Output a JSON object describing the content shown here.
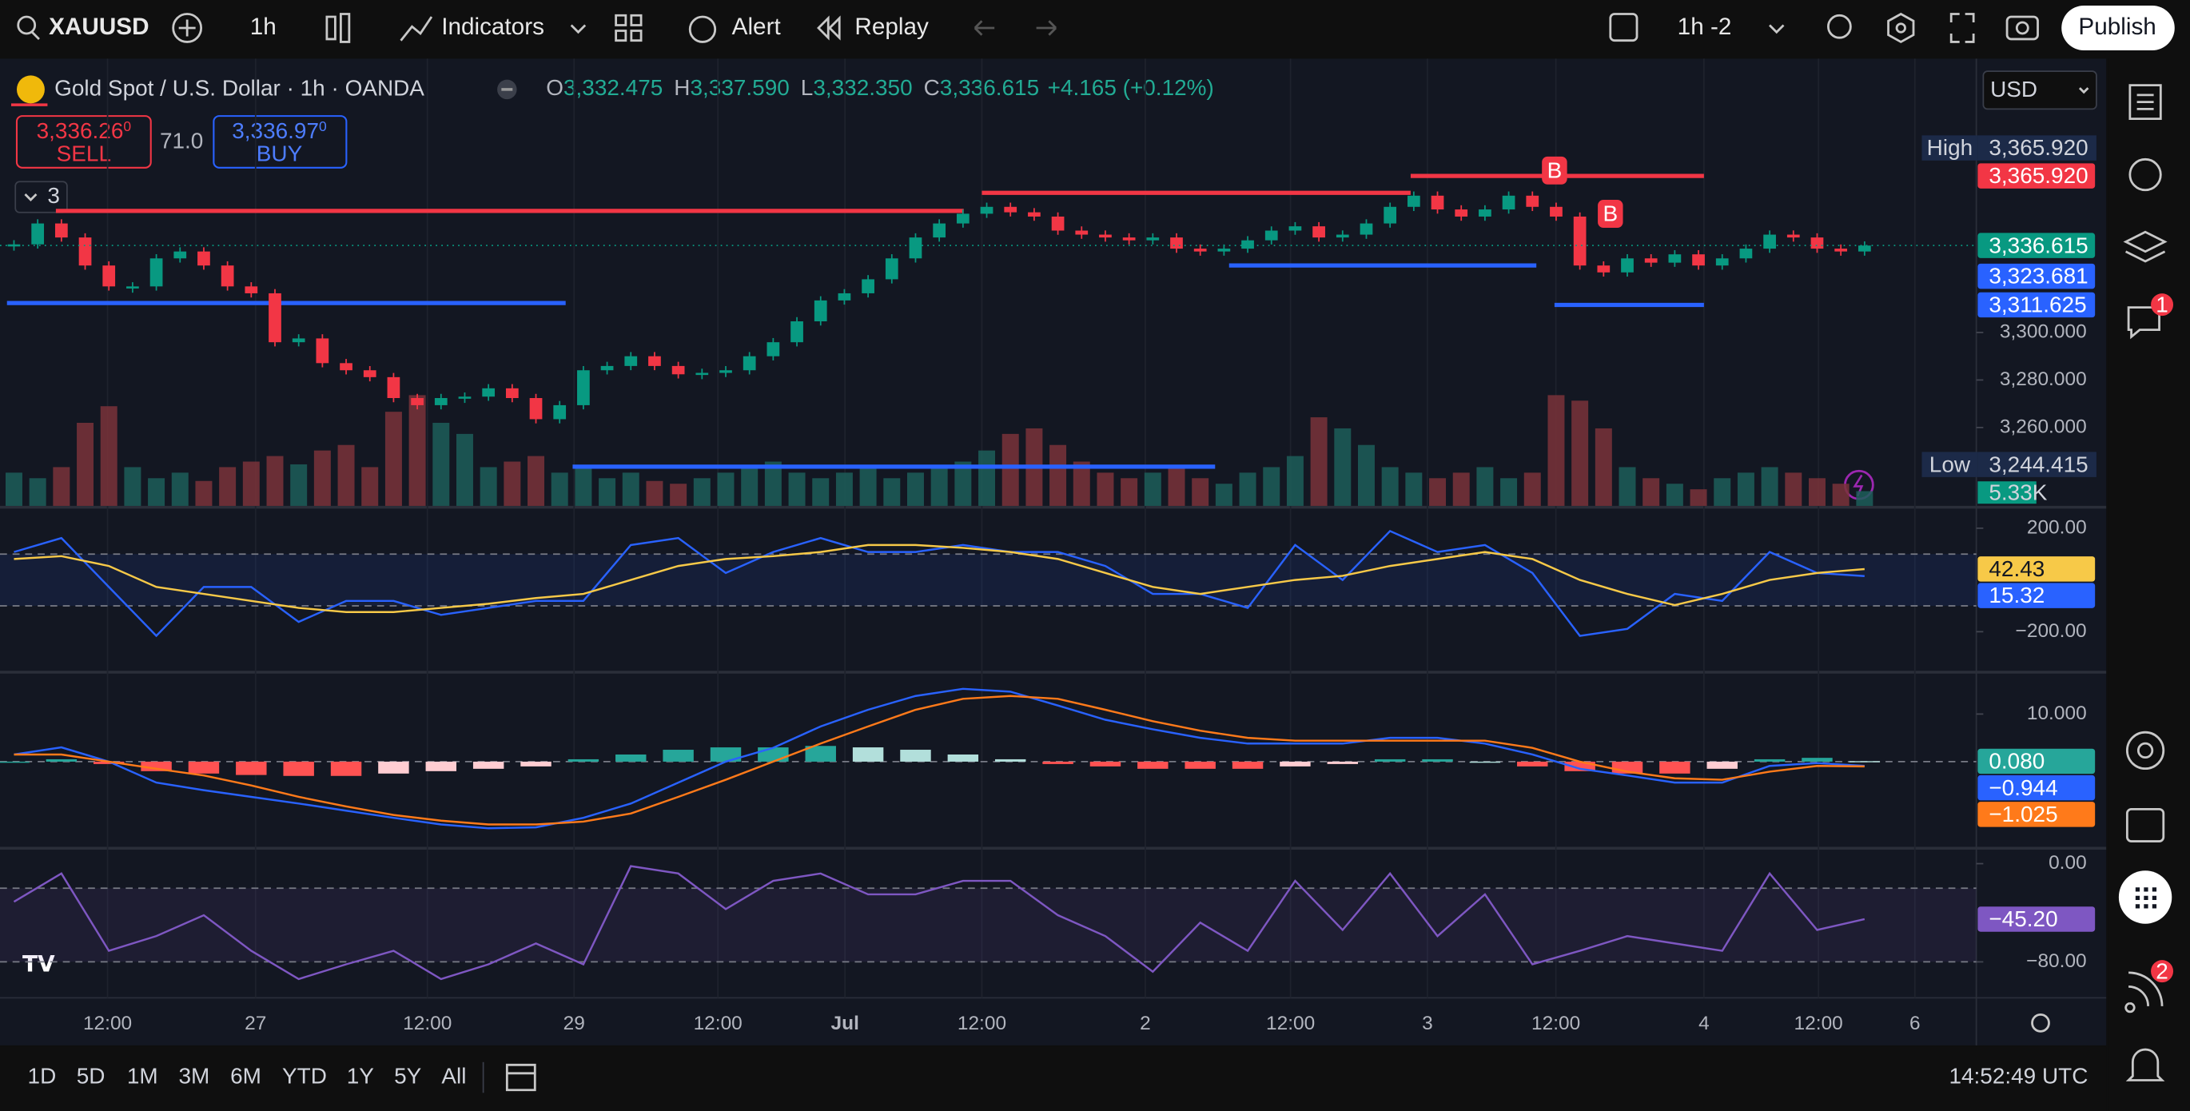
{
  "toolbar": {
    "symbol": "XAUUSD",
    "interval": "1h",
    "indicators": "Indicators",
    "alert": "Alert",
    "replay": "Replay",
    "layout": "1h -2",
    "publish": "Publish"
  },
  "legend": {
    "title": "Gold Spot / U.S. Dollar · 1h · OANDA",
    "open_label": "O",
    "open": "3,332.475",
    "high_label": "H",
    "high": "3,337.590",
    "low_label": "L",
    "low": "3,332.350",
    "close_label": "C",
    "close": "3,336.615",
    "change": "+4.165 (+0.12%)",
    "indicator_count": "3"
  },
  "trade": {
    "sell_price": "3,336.26",
    "sell_fraction": "0",
    "sell_label": "SELL",
    "spread": "71.0",
    "buy_price": "3,336.97",
    "buy_fraction": "0",
    "buy_label": "BUY"
  },
  "currency": "USD",
  "chart_data": [
    {
      "type": "candlestick",
      "closes": [
        3337.1,
        3345.9,
        3340,
        3328.2,
        3319.4,
        3319.4,
        3331.2,
        3334.1,
        3328.2,
        3319.4,
        3316.5,
        3295.9,
        3297.5,
        3287.1,
        3284.1,
        3281.2,
        3272.4,
        3269.4,
        3272.4,
        3273,
        3276.5,
        3272.4,
        3263.5,
        3269.4,
        3284.1,
        3285.9,
        3290,
        3285.9,
        3282.4,
        3283,
        3284.1,
        3290,
        3295.9,
        3304.7,
        3313.5,
        3316.5,
        3322.4,
        3331.2,
        3340,
        3345.9,
        3350,
        3352.9,
        3350.6,
        3348.8,
        3342.9,
        3341.2,
        3340,
        3338.8,
        3340,
        3335.3,
        3334.1,
        3335.3,
        3338.8,
        3342.9,
        3344.7,
        3340,
        3341.2,
        3345.9,
        3352.9,
        3357.6,
        3351.8,
        3348.8,
        3351.8,
        3357.6,
        3352.9,
        3348.8,
        3328.2,
        3325.3,
        3331.2,
        3329.4,
        3332.9,
        3328.2,
        3331.2,
        3335.3,
        3341.2,
        3340,
        3335.3,
        3334.1,
        3336.6
      ],
      "volumes": [
        12,
        10,
        14,
        30,
        36,
        14,
        10,
        12,
        9,
        14,
        16,
        18,
        15,
        20,
        22,
        14,
        34,
        40,
        30,
        26,
        14,
        16,
        18,
        12,
        14,
        10,
        12,
        9,
        8,
        10,
        12,
        14,
        16,
        12,
        10,
        12,
        14,
        10,
        12,
        14,
        16,
        20,
        26,
        28,
        22,
        16,
        12,
        10,
        12,
        14,
        10,
        8,
        12,
        14,
        18,
        32,
        28,
        22,
        14,
        12,
        10,
        12,
        14,
        10,
        12,
        40,
        38,
        28,
        14,
        10,
        8,
        6,
        10,
        12,
        14,
        12,
        10,
        8,
        5.33
      ],
      "up_color": "#089981",
      "down_color": "#f23645",
      "volume_up_color": "#1d5e59",
      "volume_down_color": "#7a3339",
      "ylim": [
        3227,
        3413.5
      ],
      "volume_lim": [
        0,
        160
      ],
      "yticks": [
        {
          "value": 3300,
          "label": "3,300.000"
        },
        {
          "value": 3280,
          "label": "3,280.000"
        },
        {
          "value": 3260,
          "label": "3,260.000"
        }
      ],
      "levels": [
        {
          "value": 3351.2,
          "color": "#f23645"
        },
        {
          "value": 3358.8,
          "color": "#f23645"
        },
        {
          "value": 3365.9,
          "color": "#f23645"
        },
        {
          "value": 3312.4,
          "color": "#2962ff"
        },
        {
          "value": 3328.2,
          "color": "#2962ff"
        },
        {
          "value": 3311.6,
          "color": "#2962ff"
        },
        {
          "value": 3243.5,
          "color": "#2962ff"
        }
      ],
      "high": {
        "name": "High",
        "value": 3365.92,
        "label": "3,365.920"
      },
      "low": {
        "name": "Low",
        "value": 3244.415,
        "label": "3,244.415"
      },
      "tags": [
        {
          "value": 3365.92,
          "label": "3,365.920",
          "color": "#f23645"
        },
        {
          "value": 3336.615,
          "label": "3,336.615",
          "color": "#089981"
        },
        {
          "value": 3323.681,
          "label": "3,323.681",
          "color": "#2962ff"
        },
        {
          "value": 3311.625,
          "label": "3,311.625",
          "color": "#2962ff"
        }
      ],
      "volume_tag": {
        "value": 5.33,
        "label": "5.33K",
        "color": "#089981"
      }
    },
    {
      "type": "line",
      "series": [
        {
          "color": "#2962ff",
          "values": [
            108,
            162,
            -27,
            -216,
            -27,
            -27,
            -162,
            -81,
            -81,
            -135,
            -108,
            -81,
            -81,
            135,
            162,
            27,
            108,
            162,
            108,
            108,
            135,
            108,
            108,
            54,
            -54,
            -54,
            -108,
            135,
            0,
            189,
            108,
            135,
            27,
            -216,
            -189,
            -54,
            -81,
            108,
            27,
            15
          ]
        },
        {
          "color": "#f7c948",
          "values": [
            81,
            92,
            54,
            -27,
            -54,
            -81,
            -108,
            -124,
            -124,
            -108,
            -92,
            -70,
            -54,
            0,
            54,
            81,
            92,
            108,
            135,
            135,
            124,
            108,
            81,
            27,
            -27,
            -54,
            -27,
            0,
            16,
            54,
            81,
            108,
            81,
            0,
            -54,
            -97,
            -54,
            0,
            27,
            42
          ]
        }
      ],
      "ylim": [
        -351,
        270
      ],
      "yticks": [
        {
          "value": 200,
          "label": "200.00"
        },
        {
          "value": -200,
          "label": "−200.00"
        }
      ],
      "bands": [
        100,
        -100
      ],
      "band_fill": "rgba(41,98,255,0.10)",
      "tags": [
        {
          "value": 42.43,
          "label": "42.43",
          "color": "#f7c948",
          "text_color": "#131722"
        },
        {
          "value": 15.32,
          "label": "15.32",
          "color": "#2962ff"
        }
      ]
    },
    {
      "type": "line",
      "series": [
        {
          "color": "#2962ff",
          "values": [
            1.5,
            3,
            0,
            -4.4,
            -6,
            -7.4,
            -8.8,
            -10.3,
            -11.8,
            -13.2,
            -14,
            -13.8,
            -11.8,
            -8.8,
            -4.4,
            0,
            2.9,
            7.4,
            10.9,
            13.8,
            15.3,
            14.7,
            11.8,
            8.8,
            6.8,
            5,
            3.8,
            3.8,
            3.8,
            5,
            5,
            3.8,
            1.5,
            -1.5,
            -2.9,
            -4.4,
            -4.4,
            -0.9,
            -0.3,
            -0.9
          ]
        },
        {
          "color": "#ff7a1a",
          "values": [
            1.5,
            1.5,
            0,
            -1.5,
            -2.9,
            -5,
            -7.4,
            -9.4,
            -11.2,
            -12.4,
            -13.2,
            -13.2,
            -12.6,
            -10.9,
            -7.4,
            -3.8,
            0,
            3.8,
            7.4,
            10.9,
            13.2,
            13.8,
            13.2,
            10.9,
            8.5,
            6.5,
            5,
            4.4,
            4.4,
            4.4,
            4.4,
            4.4,
            2.9,
            0,
            -2.1,
            -3.5,
            -3.8,
            -2.1,
            -0.9,
            -1.0
          ]
        }
      ],
      "histogram": {
        "values": [
          0,
          0.5,
          -0.5,
          -2,
          -2.5,
          -2.8,
          -3,
          -3,
          -2.5,
          -2,
          -1.5,
          -1,
          0.5,
          1.5,
          2.5,
          3,
          3,
          3.3,
          3,
          2.5,
          1.5,
          0.5,
          -0.5,
          -1,
          -1.5,
          -1.5,
          -1.5,
          -1,
          -0.5,
          0.5,
          0.5,
          0,
          -1,
          -2,
          -2.5,
          -2.5,
          -1.5,
          0.5,
          0.8,
          0.1
        ],
        "colors": [
          "#26a69a",
          "#b2dfdb",
          "#ff5252",
          "#ffcdd2"
        ]
      },
      "zero_line": true,
      "ylim": [
        -18.2,
        18.5
      ],
      "yticks": [
        {
          "value": 10,
          "label": "10.000"
        }
      ],
      "tags": [
        {
          "value": 0.08,
          "label": "0.080",
          "color": "#26a69a"
        },
        {
          "value": -0.944,
          "label": "−0.944",
          "color": "#2962ff"
        },
        {
          "value": -1.025,
          "label": "−1.025",
          "color": "#ff7a1a"
        }
      ]
    },
    {
      "type": "line",
      "series": [
        {
          "color": "#7e57c2",
          "values": [
            -31,
            -8,
            -71,
            -59,
            -42,
            -71,
            -94,
            -82,
            -71,
            -94,
            -82,
            -65,
            -82,
            -2,
            -8,
            -37,
            -14,
            -8,
            -25,
            -25,
            -14,
            -14,
            -42,
            -59,
            -88,
            -48,
            -71,
            -14,
            -54,
            -8,
            -59,
            -25,
            -82,
            -71,
            -59,
            -65,
            -71,
            -8,
            -54,
            -45.2
          ]
        }
      ],
      "ylim": [
        -107,
        11.4
      ],
      "yticks": [
        {
          "value": 0,
          "label": "0.00"
        },
        {
          "value": -80,
          "label": "−80.00"
        }
      ],
      "bands": [
        -20,
        -80
      ],
      "band_fill": "rgba(126,87,194,0.10)",
      "tags": [
        {
          "value": -45.2,
          "label": "−45.20",
          "color": "#7e57c2"
        }
      ]
    }
  ],
  "time_axis": [
    "12:00",
    "27",
    "12:00",
    "29",
    "12:00",
    "Jul",
    "12:00",
    "2",
    "12:00",
    "3",
    "12:00",
    "4",
    "12:00",
    "6"
  ],
  "markers": [
    "B",
    "B"
  ],
  "timeframes": [
    "1D",
    "5D",
    "1M",
    "3M",
    "6M",
    "YTD",
    "1Y",
    "5Y",
    "All"
  ],
  "clock": "14:52:49 UTC",
  "badges": [
    "1",
    "2"
  ]
}
